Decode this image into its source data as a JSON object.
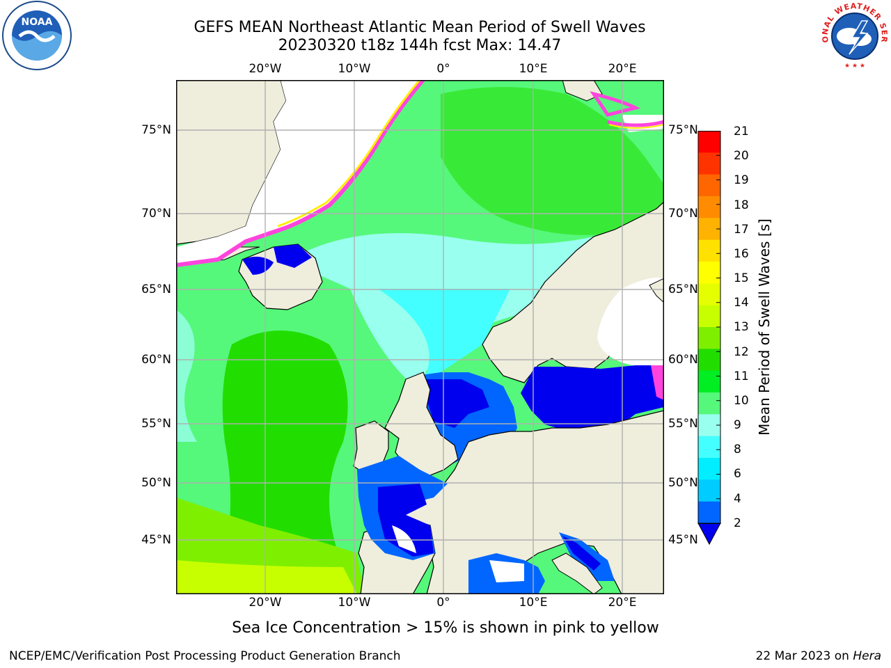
{
  "title_line1": "GEFS MEAN Northeast Atlantic Mean Period of Swell Waves",
  "title_line2": "20230320 t18z 144h fcst   Max: 14.47",
  "caption": "Sea Ice Concentration > 15% is shown in pink to yellow",
  "footer_left": "NCEP/EMC/Verification Post Processing Product Generation Branch",
  "footer_right_date": "22 Mar 2023 on ",
  "footer_right_host": "Hera",
  "map": {
    "lon_ticks": [
      "20°W",
      "10°W",
      "0°",
      "10°E",
      "20°E"
    ],
    "lat_ticks": [
      "75°N",
      "70°N",
      "65°N",
      "60°N",
      "55°N",
      "50°N",
      "45°N"
    ]
  },
  "colorbar": {
    "label": "Mean Period of Swell Waves [s]",
    "ticks": [
      "21",
      "20",
      "19",
      "18",
      "17",
      "16",
      "15",
      "14",
      "13",
      "12",
      "11",
      "10",
      "9",
      "8",
      "6",
      "4",
      "2"
    ],
    "colors": [
      "#ff0000",
      "#ff3300",
      "#ff6600",
      "#ff8c00",
      "#ffb300",
      "#ffe100",
      "#ffff00",
      "#e6ff00",
      "#c8ff00",
      "#7fef00",
      "#22dd00",
      "#00ee22",
      "#55f87a",
      "#99ffee",
      "#44ffff",
      "#00eeff",
      "#00ccff",
      "#0066ff",
      "#0000ee"
    ]
  },
  "logos": {
    "noaa_text": "NOAA",
    "nws_text": "NATIONAL WEATHER SERVICE"
  },
  "colors": {
    "land": "#efeddc",
    "ice_pink": "#ff44dd",
    "ice_yellow": "#ffee00",
    "grid": "#b0b0b0"
  }
}
